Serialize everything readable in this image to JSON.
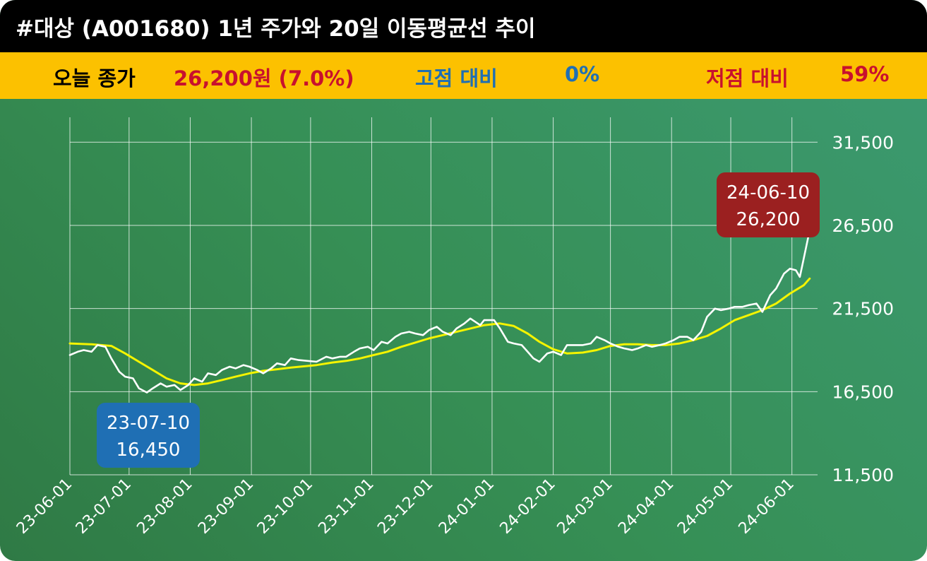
{
  "title": "#대상 (A001680) 1년 주가와 20일 이동평균선 추이",
  "stats": {
    "close_label": "오늘 종가",
    "close_value": "26,200원 (7.0%)",
    "high_label": "고점 대비",
    "high_value": "0%",
    "low_label": "저점 대비",
    "low_value": "59%"
  },
  "colors": {
    "title_bg": "#000000",
    "stat_bg": "#fcc100",
    "close_color": "#c8102e",
    "high_color": "#1f6fb4",
    "low_color": "#c8102e",
    "price_line": "#ffffff",
    "ma_line": "#f4f400",
    "low_badge": "#1f6fb4",
    "high_badge": "#9b2020"
  },
  "chart_data": {
    "type": "line",
    "grid": true,
    "y_axis_position": "right",
    "ylim": [
      11500,
      33000
    ],
    "yticks": [
      11500,
      16500,
      21500,
      26500,
      31500
    ],
    "ytick_labels": [
      "11,500",
      "16,500",
      "21,500",
      "26,500",
      "31,500"
    ],
    "xlim": [
      "2023-06-01",
      "2024-06-14"
    ],
    "xticks": [
      "2023-06-01",
      "2023-07-01",
      "2023-08-01",
      "2023-09-01",
      "2023-10-01",
      "2023-11-01",
      "2023-12-01",
      "2024-01-01",
      "2024-02-01",
      "2024-03-01",
      "2024-04-01",
      "2024-05-01",
      "2024-06-01"
    ],
    "xtick_labels": [
      "23-06-01",
      "23-07-01",
      "23-08-01",
      "23-09-01",
      "23-10-01",
      "23-11-01",
      "23-12-01",
      "24-01-01",
      "24-02-01",
      "24-03-01",
      "24-04-01",
      "24-05-01",
      "24-06-01"
    ],
    "series": [
      {
        "color": "#ffffff",
        "points": [
          [
            "2023-06-01",
            18700
          ],
          [
            "2023-06-05",
            18900
          ],
          [
            "2023-06-08",
            19000
          ],
          [
            "2023-06-12",
            18900
          ],
          [
            "2023-06-15",
            19300
          ],
          [
            "2023-06-19",
            19200
          ],
          [
            "2023-06-22",
            18500
          ],
          [
            "2023-06-26",
            17700
          ],
          [
            "2023-06-29",
            17400
          ],
          [
            "2023-07-03",
            17300
          ],
          [
            "2023-07-06",
            16700
          ],
          [
            "2023-07-10",
            16450
          ],
          [
            "2023-07-13",
            16700
          ],
          [
            "2023-07-17",
            17000
          ],
          [
            "2023-07-20",
            16800
          ],
          [
            "2023-07-24",
            16900
          ],
          [
            "2023-07-27",
            16600
          ],
          [
            "2023-07-31",
            16900
          ],
          [
            "2023-08-03",
            17300
          ],
          [
            "2023-08-07",
            17100
          ],
          [
            "2023-08-10",
            17600
          ],
          [
            "2023-08-14",
            17500
          ],
          [
            "2023-08-17",
            17800
          ],
          [
            "2023-08-21",
            18000
          ],
          [
            "2023-08-24",
            17900
          ],
          [
            "2023-08-28",
            18100
          ],
          [
            "2023-08-31",
            18000
          ],
          [
            "2023-09-04",
            17800
          ],
          [
            "2023-09-07",
            17600
          ],
          [
            "2023-09-11",
            17900
          ],
          [
            "2023-09-14",
            18200
          ],
          [
            "2023-09-18",
            18100
          ],
          [
            "2023-09-21",
            18500
          ],
          [
            "2023-09-25",
            18400
          ],
          [
            "2023-10-04",
            18300
          ],
          [
            "2023-10-09",
            18600
          ],
          [
            "2023-10-12",
            18500
          ],
          [
            "2023-10-16",
            18600
          ],
          [
            "2023-10-19",
            18600
          ],
          [
            "2023-10-23",
            18900
          ],
          [
            "2023-10-26",
            19100
          ],
          [
            "2023-10-30",
            19200
          ],
          [
            "2023-11-02",
            19000
          ],
          [
            "2023-11-06",
            19500
          ],
          [
            "2023-11-09",
            19400
          ],
          [
            "2023-11-13",
            19800
          ],
          [
            "2023-11-16",
            20000
          ],
          [
            "2023-11-20",
            20100
          ],
          [
            "2023-11-23",
            20000
          ],
          [
            "2023-11-27",
            19900
          ],
          [
            "2023-11-30",
            20200
          ],
          [
            "2023-12-04",
            20400
          ],
          [
            "2023-12-07",
            20100
          ],
          [
            "2023-12-11",
            19900
          ],
          [
            "2023-12-14",
            20300
          ],
          [
            "2023-12-18",
            20600
          ],
          [
            "2023-12-21",
            20900
          ],
          [
            "2023-12-26",
            20500
          ],
          [
            "2023-12-28",
            20800
          ],
          [
            "2024-01-02",
            20800
          ],
          [
            "2024-01-05",
            20300
          ],
          [
            "2024-01-09",
            19500
          ],
          [
            "2024-01-12",
            19400
          ],
          [
            "2024-01-16",
            19300
          ],
          [
            "2024-01-19",
            18900
          ],
          [
            "2024-01-22",
            18500
          ],
          [
            "2024-01-25",
            18300
          ],
          [
            "2024-01-29",
            18800
          ],
          [
            "2024-02-01",
            18900
          ],
          [
            "2024-02-05",
            18700
          ],
          [
            "2024-02-08",
            19300
          ],
          [
            "2024-02-13",
            19300
          ],
          [
            "2024-02-16",
            19300
          ],
          [
            "2024-02-20",
            19400
          ],
          [
            "2024-02-23",
            19800
          ],
          [
            "2024-02-27",
            19600
          ],
          [
            "2024-03-01",
            19400
          ],
          [
            "2024-03-05",
            19200
          ],
          [
            "2024-03-08",
            19100
          ],
          [
            "2024-03-12",
            19000
          ],
          [
            "2024-03-15",
            19100
          ],
          [
            "2024-03-19",
            19300
          ],
          [
            "2024-03-22",
            19200
          ],
          [
            "2024-03-26",
            19300
          ],
          [
            "2024-03-29",
            19400
          ],
          [
            "2024-04-02",
            19600
          ],
          [
            "2024-04-05",
            19800
          ],
          [
            "2024-04-09",
            19800
          ],
          [
            "2024-04-12",
            19600
          ],
          [
            "2024-04-16",
            20100
          ],
          [
            "2024-04-19",
            21000
          ],
          [
            "2024-04-23",
            21500
          ],
          [
            "2024-04-26",
            21400
          ],
          [
            "2024-04-30",
            21500
          ],
          [
            "2024-05-03",
            21600
          ],
          [
            "2024-05-07",
            21600
          ],
          [
            "2024-05-10",
            21700
          ],
          [
            "2024-05-14",
            21800
          ],
          [
            "2024-05-17",
            21300
          ],
          [
            "2024-05-21",
            22300
          ],
          [
            "2024-05-24",
            22700
          ],
          [
            "2024-05-28",
            23600
          ],
          [
            "2024-05-31",
            23900
          ],
          [
            "2024-06-03",
            23800
          ],
          [
            "2024-06-05",
            23400
          ],
          [
            "2024-06-07",
            24500
          ],
          [
            "2024-06-10",
            26200
          ]
        ]
      },
      {
        "color": "#f4f400",
        "points": [
          [
            "2023-06-01",
            19400
          ],
          [
            "2023-06-12",
            19350
          ],
          [
            "2023-06-22",
            19250
          ],
          [
            "2023-06-29",
            18800
          ],
          [
            "2023-07-06",
            18300
          ],
          [
            "2023-07-13",
            17800
          ],
          [
            "2023-07-20",
            17300
          ],
          [
            "2023-07-27",
            17000
          ],
          [
            "2023-08-03",
            16900
          ],
          [
            "2023-08-10",
            17000
          ],
          [
            "2023-08-17",
            17200
          ],
          [
            "2023-08-24",
            17400
          ],
          [
            "2023-08-31",
            17600
          ],
          [
            "2023-09-07",
            17750
          ],
          [
            "2023-09-14",
            17850
          ],
          [
            "2023-09-21",
            17950
          ],
          [
            "2023-10-04",
            18100
          ],
          [
            "2023-10-12",
            18250
          ],
          [
            "2023-10-19",
            18350
          ],
          [
            "2023-10-26",
            18500
          ],
          [
            "2023-11-02",
            18700
          ],
          [
            "2023-11-09",
            18900
          ],
          [
            "2023-11-16",
            19200
          ],
          [
            "2023-11-23",
            19450
          ],
          [
            "2023-11-30",
            19700
          ],
          [
            "2023-12-07",
            19900
          ],
          [
            "2023-12-14",
            20100
          ],
          [
            "2023-12-21",
            20300
          ],
          [
            "2023-12-28",
            20500
          ],
          [
            "2024-01-05",
            20600
          ],
          [
            "2024-01-12",
            20450
          ],
          [
            "2024-01-19",
            20000
          ],
          [
            "2024-01-25",
            19500
          ],
          [
            "2024-02-01",
            19050
          ],
          [
            "2024-02-08",
            18800
          ],
          [
            "2024-02-16",
            18850
          ],
          [
            "2024-02-23",
            19000
          ],
          [
            "2024-03-01",
            19250
          ],
          [
            "2024-03-08",
            19350
          ],
          [
            "2024-03-15",
            19350
          ],
          [
            "2024-03-22",
            19300
          ],
          [
            "2024-03-29",
            19300
          ],
          [
            "2024-04-05",
            19400
          ],
          [
            "2024-04-12",
            19600
          ],
          [
            "2024-04-19",
            19850
          ],
          [
            "2024-04-26",
            20300
          ],
          [
            "2024-05-03",
            20800
          ],
          [
            "2024-05-10",
            21100
          ],
          [
            "2024-05-17",
            21400
          ],
          [
            "2024-05-24",
            21800
          ],
          [
            "2024-05-31",
            22400
          ],
          [
            "2024-06-07",
            22900
          ],
          [
            "2024-06-10",
            23300
          ]
        ]
      }
    ],
    "annotations": [
      {
        "kind": "low",
        "x": "2023-07-10",
        "y": 16450,
        "date": "23-07-10",
        "value": "16,450"
      },
      {
        "kind": "high",
        "x": "2024-06-10",
        "y": 26200,
        "date": "24-06-10",
        "value": "26,200"
      }
    ]
  }
}
